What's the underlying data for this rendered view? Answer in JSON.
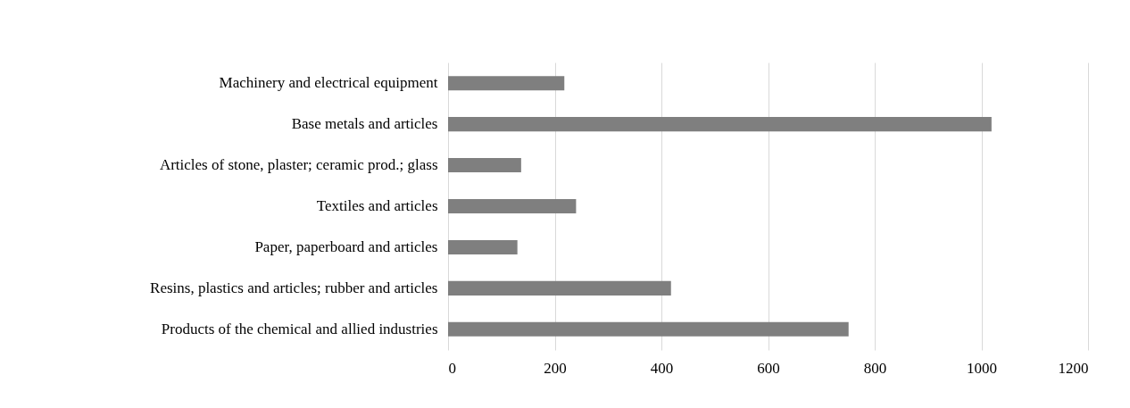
{
  "chart_data": {
    "type": "bar",
    "orientation": "horizontal",
    "categories": [
      "Machinery and electrical equipment",
      "Base metals and articles",
      "Articles of stone, plaster; ceramic prod.; glass",
      "Textiles and articles",
      "Paper, paperboard and articles",
      "Resins, plastics and articles; rubber and articles",
      "Products of the chemical and allied industries"
    ],
    "values": [
      218,
      1019,
      137,
      240,
      130,
      418,
      751
    ],
    "color": "#7f7f7f",
    "xlim": [
      0,
      1200
    ],
    "xticks": [
      0,
      200,
      400,
      600,
      800,
      1000,
      1200
    ],
    "grid": "x",
    "legend": false
  }
}
